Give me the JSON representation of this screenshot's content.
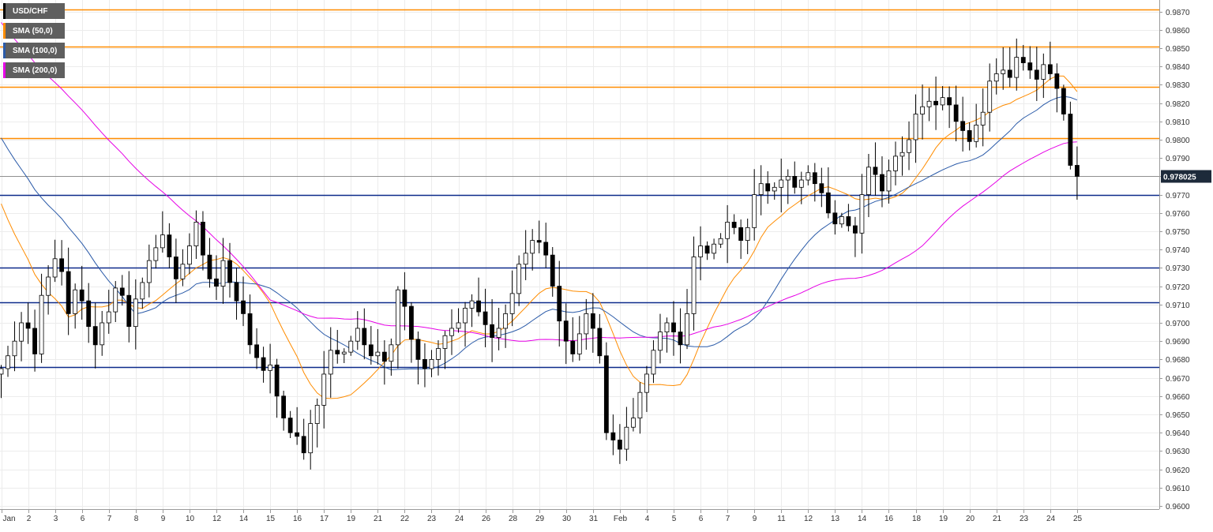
{
  "legend": [
    {
      "label": "USD/CHF",
      "color": "#000000"
    },
    {
      "label": "SMA (50,0)",
      "color": "#ff8c00"
    },
    {
      "label": "SMA (100,0)",
      "color": "#2a5aa8"
    },
    {
      "label": "SMA (200,0)",
      "color": "#e600e6"
    }
  ],
  "colors": {
    "resistance": "#ff8c00",
    "support": "#0d2a8a",
    "sma50": "#ff8c00",
    "sma100": "#2a5aa8",
    "sma200": "#e600e6",
    "bull": "#ffffff",
    "bear": "#000000",
    "price_tag_bg": "#1d2a3a"
  },
  "chart_data": {
    "type": "candlestick",
    "symbol": "USD/CHF",
    "ylim": [
      0.96,
      0.9875
    ],
    "y_ticks": [
      "0.9600",
      "0.9610",
      "0.9620",
      "0.9630",
      "0.9640",
      "0.9650",
      "0.9660",
      "0.9670",
      "0.9680",
      "0.9690",
      "0.9700",
      "0.9710",
      "0.9720",
      "0.9730",
      "0.9740",
      "0.9750",
      "0.9760",
      "0.9770",
      "0.9780",
      "0.9790",
      "0.9800",
      "0.9810",
      "0.9820",
      "0.9830",
      "0.9840",
      "0.9850",
      "0.9860",
      "0.9870"
    ],
    "x_ticks": [
      {
        "label": "Jan",
        "i": 0
      },
      {
        "label": "2",
        "i": 4
      },
      {
        "label": "3",
        "i": 8
      },
      {
        "label": "6",
        "i": 12
      },
      {
        "label": "7",
        "i": 16
      },
      {
        "label": "8",
        "i": 20
      },
      {
        "label": "9",
        "i": 24
      },
      {
        "label": "10",
        "i": 28
      },
      {
        "label": "12",
        "i": 32
      },
      {
        "label": "14",
        "i": 36
      },
      {
        "label": "15",
        "i": 40
      },
      {
        "label": "16",
        "i": 44
      },
      {
        "label": "17",
        "i": 48
      },
      {
        "label": "19",
        "i": 52
      },
      {
        "label": "21",
        "i": 56
      },
      {
        "label": "22",
        "i": 60
      },
      {
        "label": "23",
        "i": 64
      },
      {
        "label": "24",
        "i": 68
      },
      {
        "label": "26",
        "i": 72
      },
      {
        "label": "28",
        "i": 76
      },
      {
        "label": "29",
        "i": 80
      },
      {
        "label": "30",
        "i": 84
      },
      {
        "label": "31",
        "i": 88
      },
      {
        "label": "Feb",
        "i": 92
      },
      {
        "label": "4",
        "i": 96
      },
      {
        "label": "5",
        "i": 100
      },
      {
        "label": "6",
        "i": 104
      },
      {
        "label": "7",
        "i": 108
      },
      {
        "label": "9",
        "i": 112
      },
      {
        "label": "11",
        "i": 116
      },
      {
        "label": "12",
        "i": 120
      },
      {
        "label": "13",
        "i": 124
      },
      {
        "label": "14",
        "i": 128
      },
      {
        "label": "16",
        "i": 132
      },
      {
        "label": "18",
        "i": 136
      },
      {
        "label": "19",
        "i": 140
      },
      {
        "label": "20",
        "i": 144
      },
      {
        "label": "21",
        "i": 148
      },
      {
        "label": "23",
        "i": 152
      },
      {
        "label": "24",
        "i": 156
      },
      {
        "label": "25",
        "i": 160
      }
    ],
    "last_price": 0.97802,
    "last_price_label": "0.978025",
    "resistance_levels": [
      0.9871,
      0.9851,
      0.9829,
      0.9801
    ],
    "support_levels": [
      0.977,
      0.973,
      0.9711,
      0.9676
    ],
    "closes": [
      0.9675,
      0.9682,
      0.969,
      0.97,
      0.9697,
      0.9683,
      0.9715,
      0.9725,
      0.9735,
      0.9728,
      0.9705,
      0.9718,
      0.9712,
      0.9698,
      0.9688,
      0.97,
      0.9706,
      0.9719,
      0.9715,
      0.9698,
      0.9713,
      0.9722,
      0.9734,
      0.9741,
      0.9748,
      0.9736,
      0.9724,
      0.9732,
      0.9742,
      0.9755,
      0.9737,
      0.9724,
      0.972,
      0.9734,
      0.9722,
      0.9712,
      0.9705,
      0.9688,
      0.9681,
      0.9674,
      0.9677,
      0.966,
      0.9648,
      0.964,
      0.9638,
      0.9629,
      0.9645,
      0.9655,
      0.9672,
      0.9685,
      0.9683,
      0.9684,
      0.969,
      0.9697,
      0.9688,
      0.9682,
      0.9684,
      0.9679,
      0.9688,
      0.9718,
      0.9709,
      0.9691,
      0.968,
      0.9675,
      0.968,
      0.9686,
      0.9693,
      0.9697,
      0.97,
      0.9708,
      0.9712,
      0.9706,
      0.9699,
      0.9692,
      0.9697,
      0.9705,
      0.9716,
      0.9732,
      0.9738,
      0.9745,
      0.9744,
      0.9737,
      0.972,
      0.9701,
      0.969,
      0.9683,
      0.9694,
      0.9705,
      0.9697,
      0.9682,
      0.964,
      0.9636,
      0.9631,
      0.9643,
      0.9648,
      0.9662,
      0.9672,
      0.9685,
      0.9695,
      0.97,
      0.9695,
      0.9688,
      0.9705,
      0.9736,
      0.9742,
      0.9738,
      0.9743,
      0.9746,
      0.9755,
      0.9752,
      0.9745,
      0.9752,
      0.977,
      0.9776,
      0.9772,
      0.9774,
      0.9778,
      0.978,
      0.9774,
      0.9778,
      0.9782,
      0.9776,
      0.9771,
      0.976,
      0.9754,
      0.9758,
      0.9753,
      0.9749,
      0.977,
      0.9785,
      0.9781,
      0.9772,
      0.9783,
      0.9791,
      0.9793,
      0.98,
      0.9814,
      0.9818,
      0.9821,
      0.9819,
      0.9823,
      0.9819,
      0.981,
      0.9805,
      0.9799,
      0.9808,
      0.9815,
      0.9832,
      0.9836,
      0.9838,
      0.9834,
      0.9845,
      0.9842,
      0.9838,
      0.9833,
      0.9841,
      0.9836,
      0.9828,
      0.9814,
      0.9786,
      0.978
    ]
  }
}
